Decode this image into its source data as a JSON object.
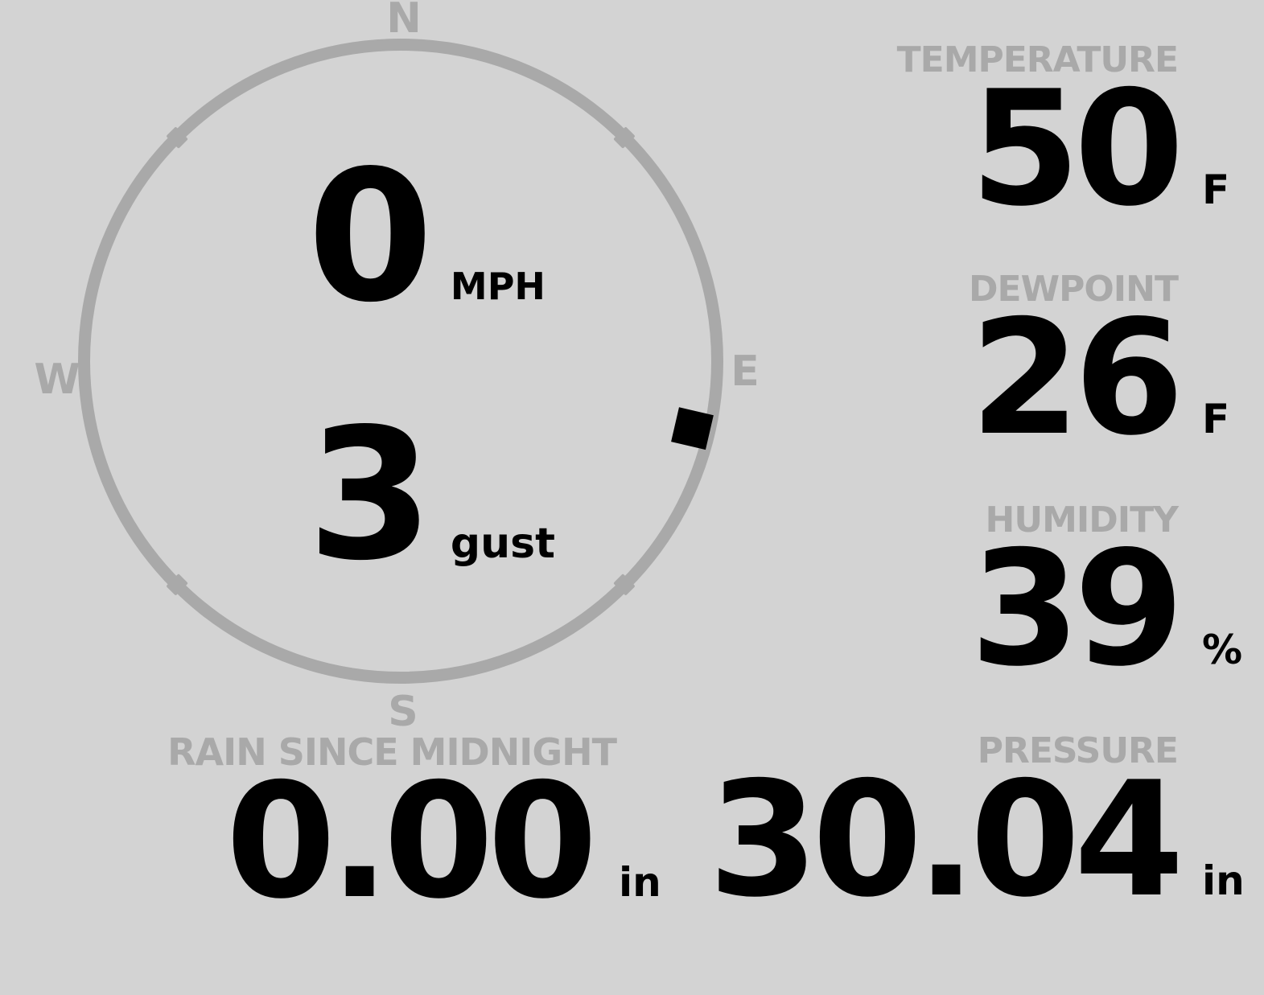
{
  "theme": {
    "background": "#d3d3d3",
    "muted": "#a9a9a9",
    "ink": "#000000"
  },
  "wind_gauge": {
    "cardinals": {
      "n": "N",
      "e": "E",
      "s": "S",
      "w": "W"
    },
    "direction_deg": 103,
    "speed": {
      "value": "0",
      "unit": "MPH"
    },
    "gust": {
      "value": "3",
      "unit": "gust"
    }
  },
  "metrics": {
    "temperature": {
      "label": "TEMPERATURE",
      "value": "50",
      "unit": "F"
    },
    "dewpoint": {
      "label": "DEWPOINT",
      "value": "26",
      "unit": "F"
    },
    "humidity": {
      "label": "HUMIDITY",
      "value": "39",
      "unit": "%"
    },
    "rain_since_midnight": {
      "label": "RAIN SINCE MIDNIGHT",
      "value": "0.00",
      "unit": "in"
    },
    "pressure": {
      "label": "PRESSURE",
      "value": "30.04",
      "unit": "in"
    }
  }
}
